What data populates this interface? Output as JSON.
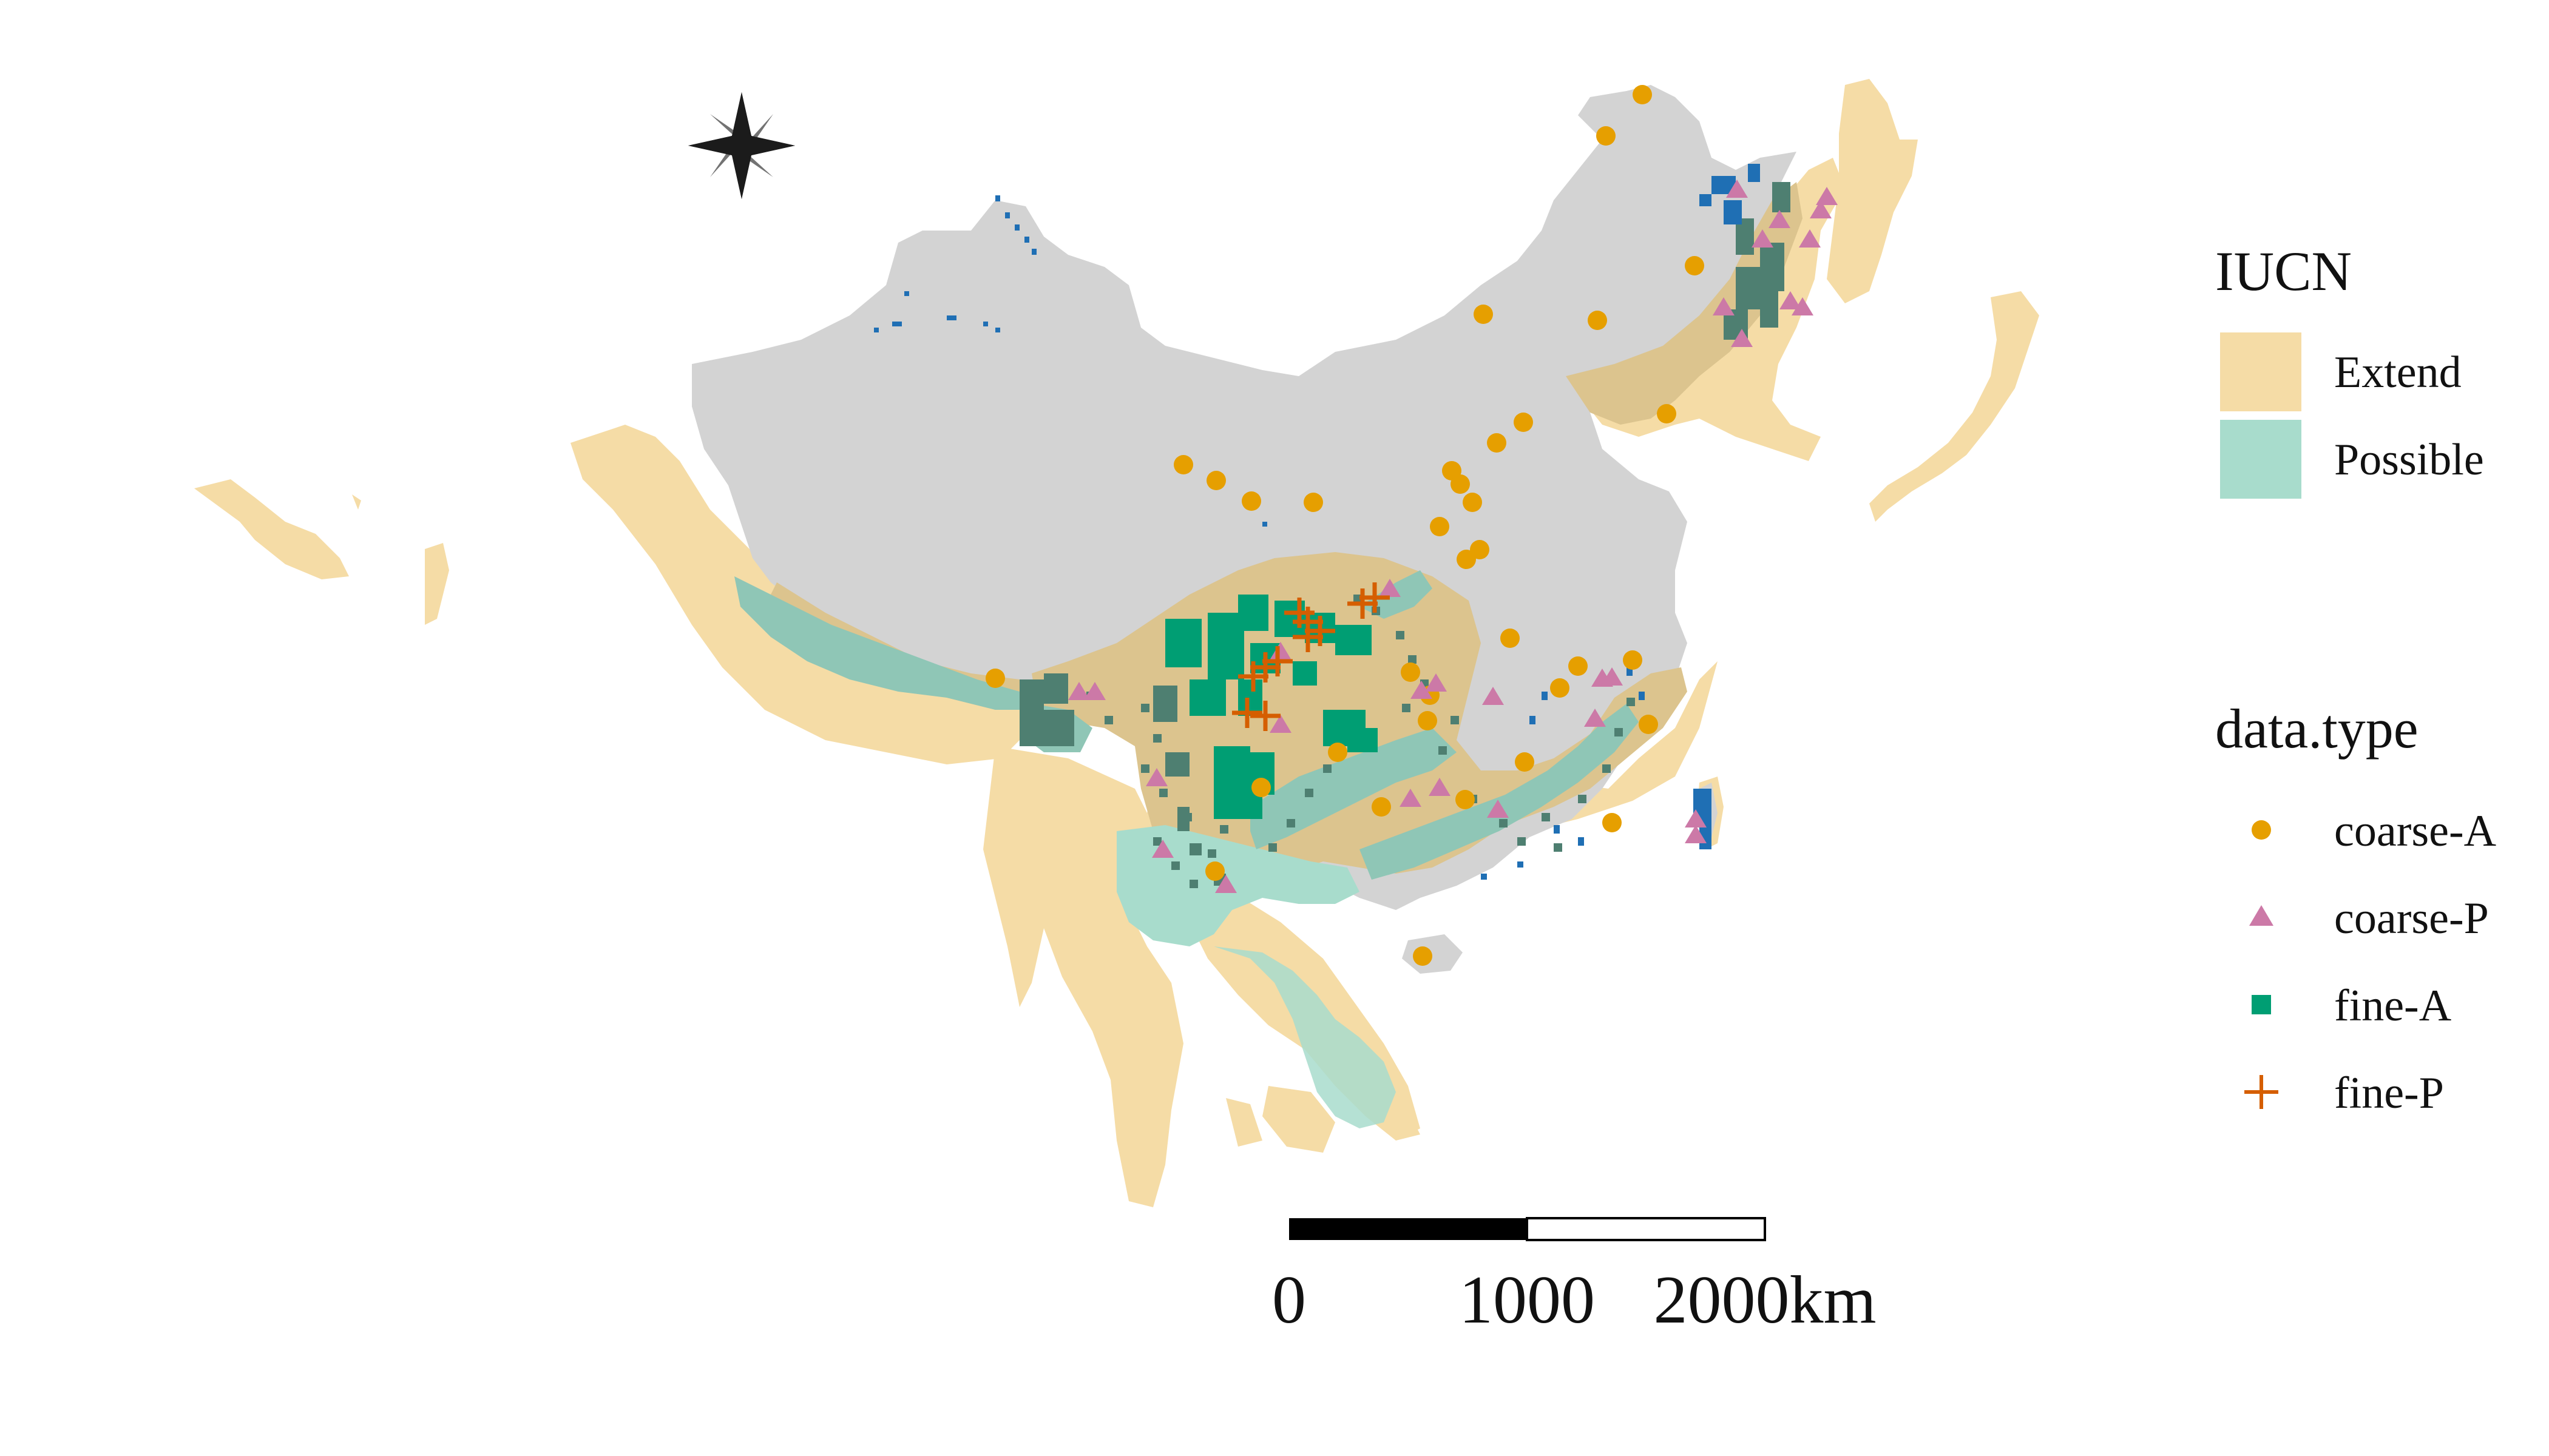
{
  "map": {
    "legend_iucn": {
      "title": "IUCN",
      "items": [
        {
          "label": "Extend",
          "color": "#f5dca6"
        },
        {
          "label": "Possible",
          "color": "#a8dccc"
        }
      ]
    },
    "legend_data_type": {
      "title": "data.type",
      "items": [
        {
          "label": "coarse-A",
          "color": "#e69f00",
          "symbol": "circle"
        },
        {
          "label": "coarse-P",
          "color": "#cc79a7",
          "symbol": "triangle"
        },
        {
          "label": "fine-A",
          "color": "#009e73",
          "symbol": "square"
        },
        {
          "label": "fine-P",
          "color": "#d55e00",
          "symbol": "cross"
        }
      ]
    },
    "scale_bar": {
      "label_start": "0",
      "label_mid": "1000",
      "label_end": "2000km"
    },
    "north_arrow": {
      "icon": "compass-star-icon"
    },
    "colors": {
      "china_land": "#d3d3d3",
      "extend": "#f5dca6",
      "possible": "#a8dccc",
      "overlap": "#dcc48e",
      "overlap_possible": "#8fc6b6",
      "fine_a_dark": "#4e7f71",
      "blue_points": "#1f6fb4"
    }
  }
}
